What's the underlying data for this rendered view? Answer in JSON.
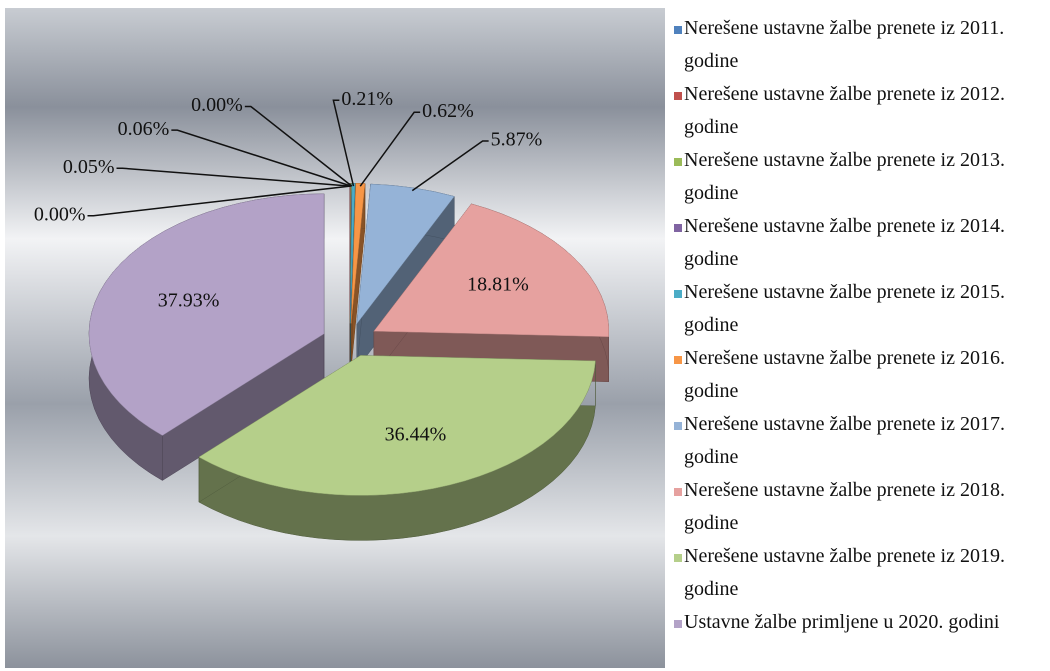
{
  "chart_data": {
    "type": "pie",
    "categories": [
      "Nerešene ustavne žalbe prenete iz 2011. godine",
      "Nerešene ustavne žalbe prenete iz 2012. godine",
      "Nerešene ustavne žalbe prenete iz 2013. godine",
      "Nerešene ustavne žalbe prenete iz 2014. godine",
      "Nerešene ustavne žalbe prenete iz 2015. godine",
      "Nerešene ustavne žalbe prenete iz 2016. godine",
      "Nerešene ustavne žalbe prenete iz 2017. godine",
      "Nerešene ustavne žalbe prenete iz 2018. godine",
      "Nerešene ustavne žalbe prenete iz 2019. godine",
      "Ustavne žalbe primljene u 2020. godini"
    ],
    "values": [
      0,
      0.05,
      0.06,
      0,
      0.21,
      0.62,
      5.87,
      18.81,
      36.44,
      37.93
    ],
    "value_labels": [
      "0.00%",
      "0.05%",
      "0.06%",
      "0.00%",
      "0.21%",
      "0.62%",
      "5.87%",
      "18.81%",
      "36.44%",
      "37.93%"
    ],
    "colors": [
      "#4f81bd",
      "#c0504d",
      "#9bbb59",
      "#8064a2",
      "#4bacc6",
      "#f79646",
      "#95b3d7",
      "#e6a19f",
      "#b5cf8a",
      "#b3a2c7"
    ],
    "legend": "right"
  }
}
